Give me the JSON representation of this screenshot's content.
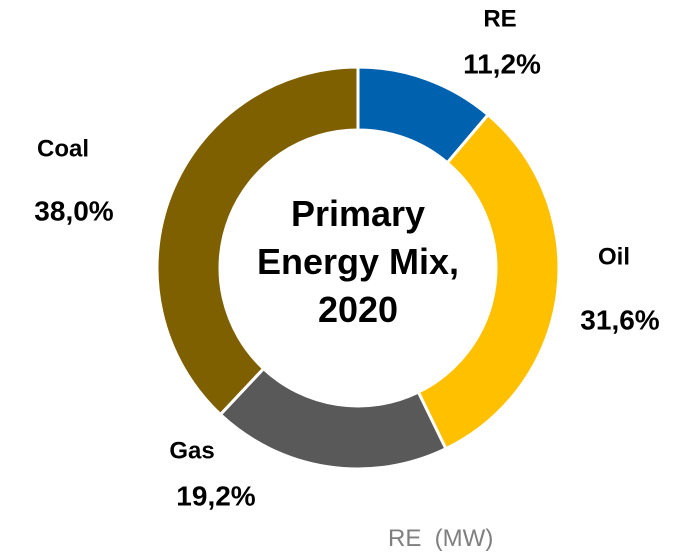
{
  "chart_data": {
    "type": "pie",
    "title": "Primary Energy Mix, 2020",
    "categories": [
      "RE",
      "Oil",
      "Gas",
      "Coal"
    ],
    "values": [
      11.2,
      31.6,
      19.2,
      38.0
    ],
    "value_labels": [
      "11,2%",
      "31,6%",
      "19,2%",
      "38,0%"
    ],
    "colors": [
      "#0061af",
      "#ffc000",
      "#595959",
      "#7f6000"
    ],
    "annotation": "RE  (MW)"
  }
}
